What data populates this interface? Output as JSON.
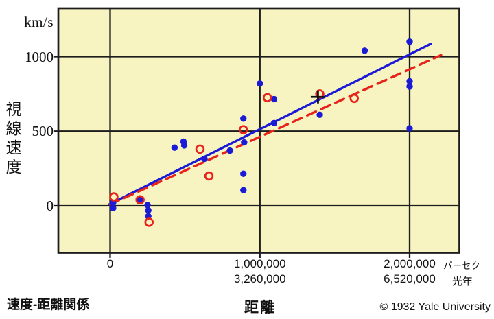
{
  "footer": {
    "copyright": "© 1932 Yale University"
  },
  "chart_data": {
    "type": "scatter",
    "title": "速度-距離関係",
    "xlabel": "距離",
    "ylabel": "視線速度",
    "y_unit": "km/s",
    "x_units": {
      "primary": "パーセク",
      "secondary": "光年"
    },
    "axis_range": {
      "x_parsec": [
        -340000,
        2330000
      ],
      "y_kms": [
        -320,
        1320
      ]
    },
    "grid": true,
    "x_axis": {
      "ticks": [
        {
          "parsec": 0,
          "label": "0",
          "label2": ""
        },
        {
          "parsec": 1000000,
          "label": "1,000,000",
          "label2": "3,260,000"
        },
        {
          "parsec": 2000000,
          "label": "2,000,000",
          "label2": "6,520,000"
        }
      ]
    },
    "y_axis": {
      "ticks": [
        {
          "kms": 0,
          "label": "0"
        },
        {
          "kms": 500,
          "label": "500"
        },
        {
          "kms": 1000,
          "label": "1000"
        }
      ]
    },
    "series": [
      {
        "name": "galaxies-filled-blue",
        "marker": "filled-circle",
        "color": "#1b1bd6",
        "points": [
          [
            20000,
            20
          ],
          [
            20000,
            -15
          ],
          [
            200000,
            40
          ],
          [
            250000,
            5
          ],
          [
            255000,
            -30
          ],
          [
            255000,
            -70
          ],
          [
            430000,
            390
          ],
          [
            490000,
            430
          ],
          [
            495000,
            405
          ],
          [
            630000,
            315
          ],
          [
            800000,
            370
          ],
          [
            890000,
            585
          ],
          [
            895000,
            425
          ],
          [
            890000,
            215
          ],
          [
            890000,
            105
          ],
          [
            1000000,
            820
          ],
          [
            1095000,
            715
          ],
          [
            1095000,
            555
          ],
          [
            1400000,
            610
          ],
          [
            1700000,
            1040
          ],
          [
            2000000,
            1100
          ],
          [
            2000000,
            835
          ],
          [
            2000000,
            800
          ],
          [
            2000000,
            520
          ]
        ]
      },
      {
        "name": "galaxies-open-red",
        "marker": "open-circle",
        "color": "#e8231b",
        "points": [
          [
            25000,
            60
          ],
          [
            200000,
            40
          ],
          [
            260000,
            -110
          ],
          [
            600000,
            380
          ],
          [
            660000,
            200
          ],
          [
            890000,
            510
          ],
          [
            1050000,
            725
          ],
          [
            1400000,
            750
          ],
          [
            1630000,
            720
          ]
        ]
      }
    ],
    "fit_lines": [
      {
        "name": "fit-solid-blue",
        "style": "solid",
        "color": "#1b1bd6",
        "from": [
          -5000,
          10
        ],
        "to": [
          2140000,
          1085
        ]
      },
      {
        "name": "fit-dashed-red",
        "style": "dashed",
        "color": "#e8231b",
        "from": [
          0,
          10
        ],
        "to": [
          2210000,
          1010
        ]
      }
    ],
    "annotations": [
      {
        "type": "plus-marker",
        "parsec": 1388000,
        "kms": 730,
        "color": "#111111"
      }
    ],
    "colors": {
      "plot_bg": "#f8f4c2",
      "grid": "#1c1c1c",
      "blue": "#1b1bd6",
      "red": "#e8231b"
    }
  }
}
